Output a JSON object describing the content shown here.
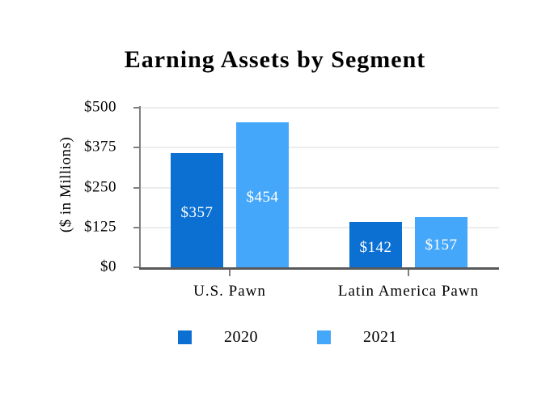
{
  "chart_data": {
    "type": "bar",
    "title": "Earning Assets by Segment",
    "ylabel": "($ in Millions)",
    "xlabel": "",
    "categories": [
      "U.S. Pawn",
      "Latin America Pawn"
    ],
    "series": [
      {
        "name": "2020",
        "color": "#0B70D2",
        "values": [
          357,
          142
        ],
        "data_labels": [
          "$357",
          "$142"
        ]
      },
      {
        "name": "2021",
        "color": "#45A7FA",
        "values": [
          454,
          157
        ],
        "data_labels": [
          "$454",
          "$157"
        ]
      }
    ],
    "ylim": [
      0,
      500
    ],
    "yticks": [
      {
        "value": 500,
        "label": "$500"
      },
      {
        "value": 375,
        "label": "$375"
      },
      {
        "value": 250,
        "label": "$250"
      },
      {
        "value": 125,
        "label": "$125"
      },
      {
        "value": 0,
        "label": "$0"
      }
    ],
    "grid": true,
    "legend_position": "bottom"
  },
  "colors": {
    "series_2020": "#0B70D2",
    "series_2021": "#45A7FA",
    "gridline": "#ECECEC",
    "axis_line": "#808080",
    "baseline": "#595959",
    "value_label_text": "#FFFFFF",
    "text": "#000000",
    "background": "#FFFFFF"
  }
}
